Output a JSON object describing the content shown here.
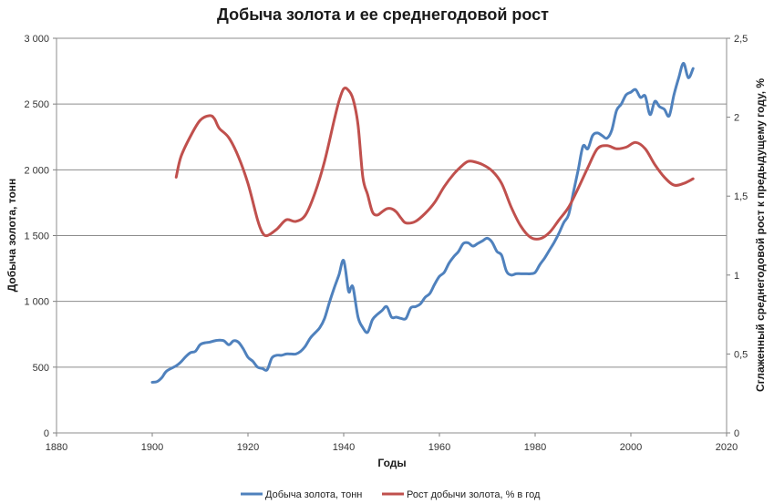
{
  "chart_data": {
    "type": "line",
    "title": "Добыча золота и ее среднегодовой рост",
    "xlabel": "Годы",
    "ylabel": "Добыча золота, тонн",
    "y2label": "Сглаженный среднегодовой рост к предыдущему году, %",
    "xlim": [
      1880,
      2020
    ],
    "ylim": [
      0,
      3000
    ],
    "y2lim": [
      0,
      2.5
    ],
    "x_ticks": [
      "1880",
      "1900",
      "1920",
      "1940",
      "1960",
      "1980",
      "2000",
      "2020"
    ],
    "y_ticks": [
      "0",
      "500",
      "1 000",
      "1 500",
      "2 000",
      "2 500",
      "3 000"
    ],
    "y2_ticks": [
      "0",
      "0,5",
      "1",
      "1,5",
      "2",
      "2,5"
    ],
    "grid": true,
    "legend_position": "bottom",
    "series": [
      {
        "name": "Добыча золота, тонн",
        "axis": "left",
        "color": "#4F81BD",
        "points": [
          [
            1900,
            385
          ],
          [
            1901,
            390
          ],
          [
            1902,
            420
          ],
          [
            1903,
            470
          ],
          [
            1905,
            510
          ],
          [
            1906,
            540
          ],
          [
            1907,
            580
          ],
          [
            1908,
            610
          ],
          [
            1909,
            620
          ],
          [
            1910,
            670
          ],
          [
            1911,
            685
          ],
          [
            1912,
            690
          ],
          [
            1913,
            700
          ],
          [
            1914,
            705
          ],
          [
            1915,
            700
          ],
          [
            1916,
            670
          ],
          [
            1917,
            700
          ],
          [
            1918,
            690
          ],
          [
            1919,
            640
          ],
          [
            1920,
            575
          ],
          [
            1921,
            545
          ],
          [
            1922,
            500
          ],
          [
            1923,
            490
          ],
          [
            1924,
            480
          ],
          [
            1925,
            570
          ],
          [
            1926,
            590
          ],
          [
            1927,
            590
          ],
          [
            1928,
            600
          ],
          [
            1929,
            600
          ],
          [
            1930,
            600
          ],
          [
            1931,
            620
          ],
          [
            1932,
            660
          ],
          [
            1933,
            720
          ],
          [
            1934,
            760
          ],
          [
            1935,
            800
          ],
          [
            1936,
            870
          ],
          [
            1937,
            990
          ],
          [
            1938,
            1100
          ],
          [
            1939,
            1200
          ],
          [
            1940,
            1310
          ],
          [
            1941,
            1080
          ],
          [
            1941.5,
            1105
          ],
          [
            1942,
            1100
          ],
          [
            1943,
            880
          ],
          [
            1944,
            800
          ],
          [
            1945,
            765
          ],
          [
            1946,
            860
          ],
          [
            1947,
            900
          ],
          [
            1948,
            930
          ],
          [
            1949,
            960
          ],
          [
            1950,
            880
          ],
          [
            1951,
            880
          ],
          [
            1952,
            870
          ],
          [
            1953,
            870
          ],
          [
            1954,
            950
          ],
          [
            1955,
            960
          ],
          [
            1956,
            980
          ],
          [
            1957,
            1030
          ],
          [
            1958,
            1060
          ],
          [
            1959,
            1130
          ],
          [
            1960,
            1190
          ],
          [
            1961,
            1220
          ],
          [
            1962,
            1290
          ],
          [
            1963,
            1340
          ],
          [
            1964,
            1380
          ],
          [
            1965,
            1440
          ],
          [
            1966,
            1445
          ],
          [
            1967,
            1420
          ],
          [
            1968,
            1440
          ],
          [
            1969,
            1460
          ],
          [
            1970,
            1480
          ],
          [
            1971,
            1450
          ],
          [
            1972,
            1380
          ],
          [
            1973,
            1350
          ],
          [
            1974,
            1230
          ],
          [
            1975,
            1200
          ],
          [
            1976,
            1210
          ],
          [
            1977,
            1210
          ],
          [
            1978,
            1210
          ],
          [
            1979,
            1210
          ],
          [
            1980,
            1220
          ],
          [
            1981,
            1280
          ],
          [
            1982,
            1330
          ],
          [
            1983,
            1390
          ],
          [
            1984,
            1450
          ],
          [
            1985,
            1520
          ],
          [
            1986,
            1600
          ],
          [
            1987,
            1660
          ],
          [
            1988,
            1830
          ],
          [
            1989,
            2000
          ],
          [
            1990,
            2180
          ],
          [
            1991,
            2160
          ],
          [
            1992,
            2260
          ],
          [
            1993,
            2280
          ],
          [
            1994,
            2260
          ],
          [
            1995,
            2240
          ],
          [
            1996,
            2300
          ],
          [
            1997,
            2450
          ],
          [
            1998,
            2500
          ],
          [
            1999,
            2570
          ],
          [
            2000,
            2590
          ],
          [
            2001,
            2610
          ],
          [
            2002,
            2550
          ],
          [
            2003,
            2560
          ],
          [
            2004,
            2420
          ],
          [
            2005,
            2520
          ],
          [
            2006,
            2480
          ],
          [
            2007,
            2460
          ],
          [
            2008,
            2410
          ],
          [
            2009,
            2570
          ],
          [
            2010,
            2700
          ],
          [
            2011,
            2810
          ],
          [
            2012,
            2700
          ],
          [
            2013,
            2770
          ]
        ]
      },
      {
        "name": "Рост добычи золота, % в год",
        "axis": "right",
        "color": "#C0504D",
        "points": [
          [
            1905,
            1.62
          ],
          [
            1906,
            1.75
          ],
          [
            1908,
            1.88
          ],
          [
            1910,
            1.98
          ],
          [
            1912,
            2.01
          ],
          [
            1913,
            1.99
          ],
          [
            1914,
            1.93
          ],
          [
            1916,
            1.87
          ],
          [
            1918,
            1.75
          ],
          [
            1920,
            1.58
          ],
          [
            1922,
            1.35
          ],
          [
            1923,
            1.27
          ],
          [
            1924,
            1.25
          ],
          [
            1926,
            1.29
          ],
          [
            1928,
            1.35
          ],
          [
            1930,
            1.34
          ],
          [
            1932,
            1.38
          ],
          [
            1934,
            1.52
          ],
          [
            1936,
            1.72
          ],
          [
            1938,
            1.98
          ],
          [
            1939,
            2.1
          ],
          [
            1940,
            2.18
          ],
          [
            1941,
            2.17
          ],
          [
            1942,
            2.11
          ],
          [
            1943,
            1.95
          ],
          [
            1944,
            1.62
          ],
          [
            1945,
            1.51
          ],
          [
            1946,
            1.4
          ],
          [
            1947,
            1.38
          ],
          [
            1948,
            1.4
          ],
          [
            1949,
            1.42
          ],
          [
            1950,
            1.42
          ],
          [
            1951,
            1.4
          ],
          [
            1952,
            1.36
          ],
          [
            1953,
            1.33
          ],
          [
            1955,
            1.34
          ],
          [
            1957,
            1.39
          ],
          [
            1959,
            1.46
          ],
          [
            1961,
            1.56
          ],
          [
            1963,
            1.64
          ],
          [
            1965,
            1.7
          ],
          [
            1966,
            1.72
          ],
          [
            1967,
            1.72
          ],
          [
            1969,
            1.7
          ],
          [
            1971,
            1.66
          ],
          [
            1973,
            1.58
          ],
          [
            1975,
            1.43
          ],
          [
            1977,
            1.31
          ],
          [
            1979,
            1.24
          ],
          [
            1981,
            1.23
          ],
          [
            1983,
            1.27
          ],
          [
            1985,
            1.35
          ],
          [
            1987,
            1.43
          ],
          [
            1989,
            1.55
          ],
          [
            1991,
            1.68
          ],
          [
            1993,
            1.8
          ],
          [
            1995,
            1.82
          ],
          [
            1997,
            1.8
          ],
          [
            1999,
            1.81
          ],
          [
            2001,
            1.84
          ],
          [
            2003,
            1.8
          ],
          [
            2005,
            1.7
          ],
          [
            2007,
            1.62
          ],
          [
            2009,
            1.57
          ],
          [
            2011,
            1.58
          ],
          [
            2013,
            1.61
          ]
        ]
      }
    ]
  }
}
